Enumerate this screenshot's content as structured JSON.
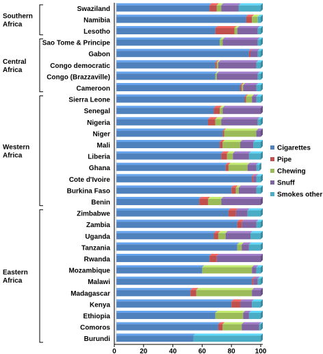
{
  "chart_data": {
    "type": "bar",
    "orientation": "horizontal",
    "stacked": true,
    "xlim": [
      0,
      100
    ],
    "x_ticks": [
      "0",
      "20",
      "40",
      "60",
      "80",
      "100"
    ],
    "grid": false,
    "legend_position": "right",
    "groups": [
      {
        "name": "Southern Africa",
        "categories": [
          "Swaziland",
          "Namibia",
          "Lesotho"
        ]
      },
      {
        "name": "Central Africa",
        "categories": [
          "Sao Tome & Principe",
          "Gabon",
          "Congo democratic",
          "Congo (Brazzaville)",
          "Cameroon"
        ]
      },
      {
        "name": "Western Africa",
        "categories": [
          "Sierra Leone",
          "Senegal",
          "Nigeria",
          "Niger",
          "Mali",
          "Liberia",
          "Ghana",
          "Cote d'Ivoire",
          "Burkina Faso",
          "Benin"
        ]
      },
      {
        "name": "Eastern Africa",
        "categories": [
          "Zimbabwe",
          "Zambia",
          "Uganda",
          "Tanzania",
          "Rwanda",
          "Mozambique",
          "Malawi",
          "Madagascar",
          "Kenya",
          "Ethiopia",
          "Comoros",
          "Burundi"
        ]
      }
    ],
    "categories": [
      "Swaziland",
      "Namibia",
      "Lesotho",
      "Sao Tome & Principe",
      "Gabon",
      "Congo democratic",
      "Congo (Brazzaville)",
      "Cameroon",
      "Sierra Leone",
      "Senegal",
      "Nigeria",
      "Niger",
      "Mali",
      "Liberia",
      "Ghana",
      "Cote d'Ivoire",
      "Burkina Faso",
      "Benin",
      "Zimbabwe",
      "Zambia",
      "Uganda",
      "Tanzania",
      "Rwanda",
      "Mozambique",
      "Malawi",
      "Madagascar",
      "Kenya",
      "Ethiopia",
      "Comoros",
      "Burundi"
    ],
    "series": [
      {
        "name": "Cigarettes",
        "color": "#4f81bd",
        "values": [
          65,
          90,
          69,
          72,
          92,
          69,
          69,
          86,
          89,
          68,
          64,
          74,
          72,
          73,
          76,
          94,
          80,
          58,
          78,
          84,
          68,
          84,
          65,
          60,
          94,
          52,
          80,
          69,
          71,
          54
        ]
      },
      {
        "name": "Pipe",
        "color": "#c0504d",
        "values": [
          5,
          4,
          13,
          0,
          1,
          1,
          0,
          1,
          1,
          4,
          5,
          1,
          2,
          4,
          2,
          1,
          3,
          6,
          5,
          3,
          3,
          0,
          5,
          0,
          1,
          4,
          6,
          0,
          3,
          0
        ]
      },
      {
        "name": "Chewing",
        "color": "#9bbb59",
        "values": [
          3,
          4,
          2,
          2,
          0,
          1,
          1,
          1,
          4,
          2,
          4,
          22,
          12,
          4,
          13,
          0,
          2,
          9,
          0,
          0,
          5,
          3,
          0,
          34,
          0,
          38,
          0,
          19,
          13,
          0
        ]
      },
      {
        "name": "Snuff",
        "color": "#8064a2",
        "values": [
          12,
          0,
          14,
          24,
          5,
          26,
          28,
          9,
          3,
          26,
          25,
          3,
          9,
          11,
          6,
          2,
          12,
          27,
          8,
          10,
          17,
          5,
          30,
          3,
          3,
          6,
          8,
          4,
          12,
          0
        ]
      },
      {
        "name": "Smokes other",
        "color": "#4bacc6",
        "values": [
          15,
          2,
          2,
          2,
          2,
          3,
          2,
          3,
          3,
          0,
          2,
          0,
          5,
          8,
          2,
          3,
          3,
          0,
          9,
          3,
          7,
          8,
          0,
          3,
          2,
          0,
          6,
          8,
          1,
          46
        ]
      }
    ]
  }
}
